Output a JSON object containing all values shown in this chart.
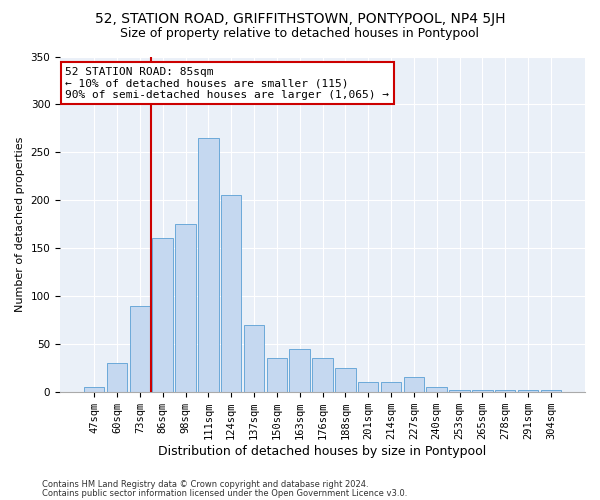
{
  "title": "52, STATION ROAD, GRIFFITHSTOWN, PONTYPOOL, NP4 5JH",
  "subtitle": "Size of property relative to detached houses in Pontypool",
  "xlabel": "Distribution of detached houses by size in Pontypool",
  "ylabel": "Number of detached properties",
  "categories": [
    "47sqm",
    "60sqm",
    "73sqm",
    "86sqm",
    "98sqm",
    "111sqm",
    "124sqm",
    "137sqm",
    "150sqm",
    "163sqm",
    "176sqm",
    "188sqm",
    "201sqm",
    "214sqm",
    "227sqm",
    "240sqm",
    "253sqm",
    "265sqm",
    "278sqm",
    "291sqm",
    "304sqm"
  ],
  "values": [
    5,
    30,
    90,
    160,
    175,
    265,
    205,
    70,
    35,
    45,
    35,
    25,
    10,
    10,
    15,
    5,
    2,
    2,
    2,
    2,
    2
  ],
  "bar_color": "#c5d8f0",
  "bar_edge_color": "#5a9fd4",
  "vline_index": 3,
  "vline_color": "#cc0000",
  "annotation_text": "52 STATION ROAD: 85sqm\n← 10% of detached houses are smaller (115)\n90% of semi-detached houses are larger (1,065) →",
  "annotation_box_color": "#ffffff",
  "annotation_box_edge": "#cc0000",
  "ylim": [
    0,
    350
  ],
  "yticks": [
    0,
    50,
    100,
    150,
    200,
    250,
    300,
    350
  ],
  "background_color": "#eaf0f8",
  "footer_line1": "Contains HM Land Registry data © Crown copyright and database right 2024.",
  "footer_line2": "Contains public sector information licensed under the Open Government Licence v3.0.",
  "title_fontsize": 10,
  "subtitle_fontsize": 9,
  "xlabel_fontsize": 9,
  "ylabel_fontsize": 8,
  "tick_fontsize": 7.5,
  "annotation_fontsize": 8,
  "footer_fontsize": 6
}
